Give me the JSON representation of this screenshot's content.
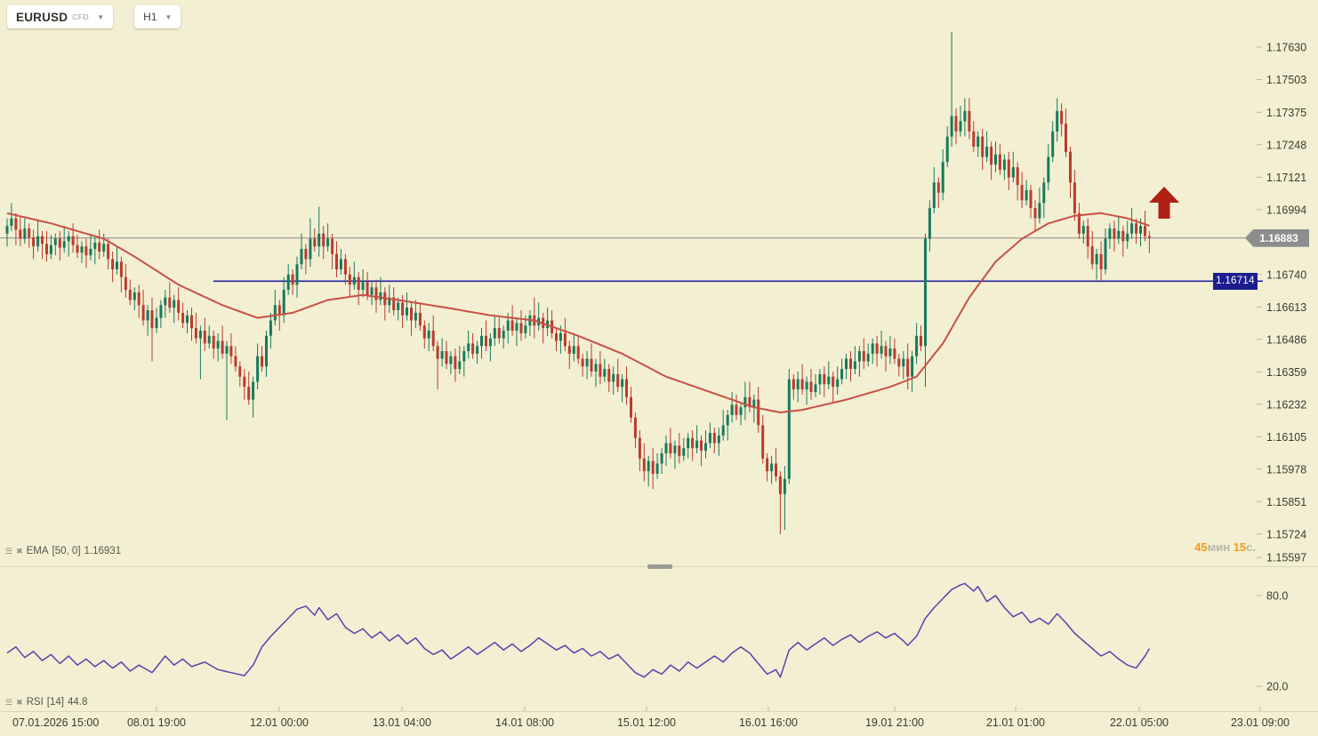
{
  "header": {
    "symbol": "EURUSD",
    "market_type": "CFD",
    "interval": "H1"
  },
  "indicators": {
    "ema": {
      "name": "EMA",
      "params": "[50, 0]",
      "value": "1.16931"
    },
    "rsi": {
      "name": "RSI",
      "params": "[14]",
      "value": "44.8"
    }
  },
  "countdown": {
    "minutes": "45",
    "minutes_unit": "мин",
    "seconds": "15",
    "seconds_unit": "с."
  },
  "chart_data": {
    "type": "candlestick",
    "title": "EURUSD CFD H1 with EMA(50) and RSI(14)",
    "price_axis": {
      "ticks": [
        "1.17630",
        "1.17503",
        "1.17375",
        "1.17248",
        "1.17121",
        "1.16994",
        "1.16740",
        "1.16613",
        "1.16486",
        "1.16359",
        "1.16232",
        "1.16105",
        "1.15978",
        "1.15851",
        "1.15724",
        "1.15597"
      ],
      "badge_current": "1.16883",
      "badge_support": "1.16714"
    },
    "time_axis": {
      "labels": [
        "07.01.2026 15:00",
        "08.01 19:00",
        "12.01 00:00",
        "13.01 04:00",
        "14.01 08:00",
        "15.01 12:00",
        "16.01 16:00",
        "19.01 21:00",
        "21.01 01:00",
        "22.01 05:00",
        "23.01 09:00"
      ]
    },
    "candles": {
      "first_open": 1.169,
      "closes": [
        1.1693,
        1.1696,
        1.16915,
        1.1688,
        1.1692,
        1.16885,
        1.1685,
        1.1689,
        1.1686,
        1.1682,
        1.16855,
        1.1688,
        1.16845,
        1.1687,
        1.1689,
        1.16855,
        1.16825,
        1.1685,
        1.16815,
        1.1684,
        1.16865,
        1.1683,
        1.1686,
        1.168,
        1.1676,
        1.1679,
        1.1673,
        1.1668,
        1.1664,
        1.1667,
        1.1662,
        1.1656,
        1.166,
        1.1653,
        1.1657,
        1.1662,
        1.1665,
        1.1661,
        1.1664,
        1.1659,
        1.1655,
        1.1658,
        1.1653,
        1.1649,
        1.1652,
        1.1647,
        1.165,
        1.1645,
        1.1648,
        1.1643,
        1.1646,
        1.1642,
        1.1638,
        1.1634,
        1.163,
        1.1625,
        1.1632,
        1.1642,
        1.1638,
        1.165,
        1.1656,
        1.1662,
        1.1658,
        1.1668,
        1.1674,
        1.167,
        1.1678,
        1.1684,
        1.168,
        1.1688,
        1.1685,
        1.169,
        1.1685,
        1.1688,
        1.1682,
        1.1676,
        1.168,
        1.1674,
        1.167,
        1.1673,
        1.1668,
        1.1671,
        1.1666,
        1.1669,
        1.1664,
        1.1667,
        1.1662,
        1.1665,
        1.166,
        1.1663,
        1.1658,
        1.1661,
        1.1656,
        1.1659,
        1.1654,
        1.1649,
        1.1652,
        1.1646,
        1.1641,
        1.1644,
        1.1639,
        1.1642,
        1.1637,
        1.164,
        1.1644,
        1.1647,
        1.1643,
        1.1646,
        1.165,
        1.1646,
        1.1649,
        1.1653,
        1.1649,
        1.1652,
        1.1656,
        1.1652,
        1.1655,
        1.1651,
        1.1654,
        1.1658,
        1.1654,
        1.1657,
        1.1653,
        1.1656,
        1.1651,
        1.1648,
        1.1651,
        1.1646,
        1.1643,
        1.1646,
        1.1641,
        1.1638,
        1.1641,
        1.1636,
        1.1639,
        1.1634,
        1.1637,
        1.1632,
        1.1635,
        1.163,
        1.1633,
        1.1626,
        1.1618,
        1.161,
        1.1602,
        1.1597,
        1.1601,
        1.1596,
        1.16,
        1.1604,
        1.1608,
        1.1604,
        1.1607,
        1.1603,
        1.1606,
        1.161,
        1.1606,
        1.1609,
        1.1605,
        1.1608,
        1.1612,
        1.1608,
        1.1611,
        1.1615,
        1.1619,
        1.1623,
        1.1619,
        1.1622,
        1.1626,
        1.1622,
        1.1625,
        1.1615,
        1.1602,
        1.1597,
        1.16,
        1.1595,
        1.1588,
        1.1594,
        1.1633,
        1.1629,
        1.1633,
        1.1629,
        1.1632,
        1.1628,
        1.1631,
        1.1635,
        1.1631,
        1.1634,
        1.163,
        1.1633,
        1.1637,
        1.1641,
        1.1637,
        1.164,
        1.1644,
        1.164,
        1.1643,
        1.1647,
        1.1643,
        1.1646,
        1.1642,
        1.1645,
        1.1641,
        1.1638,
        1.1641,
        1.1634,
        1.1642,
        1.165,
        1.1646,
        1.1688,
        1.17,
        1.171,
        1.1706,
        1.1718,
        1.1728,
        1.1736,
        1.173,
        1.1734,
        1.1738,
        1.173,
        1.1724,
        1.1728,
        1.172,
        1.1724,
        1.1717,
        1.1721,
        1.1715,
        1.1719,
        1.1712,
        1.1716,
        1.1709,
        1.1703,
        1.1707,
        1.17,
        1.1696,
        1.1702,
        1.171,
        1.172,
        1.173,
        1.1738,
        1.1733,
        1.1722,
        1.171,
        1.1698,
        1.169,
        1.1693,
        1.1685,
        1.1678,
        1.1682,
        1.1676,
        1.1688,
        1.1692,
        1.1688,
        1.1691,
        1.1687,
        1.169,
        1.1694,
        1.169,
        1.1693,
        1.1689,
        1.16883
      ],
      "wick_up_pattern": [
        0.0003,
        0.0006,
        0.0002,
        0.0005,
        0.0004,
        0.0002
      ],
      "wick_dn_pattern": [
        0.0005,
        0.0002,
        0.0006,
        0.0003,
        0.0002,
        0.0004
      ],
      "wick_events": [
        {
          "i": 33,
          "l": 1.164
        },
        {
          "i": 44,
          "l": 1.1633
        },
        {
          "i": 50,
          "l": 1.1617
        },
        {
          "i": 56,
          "l": 1.1618
        },
        {
          "i": 69,
          "h": 1.1696
        },
        {
          "i": 71,
          "h": 1.17005
        },
        {
          "i": 98,
          "l": 1.1629
        },
        {
          "i": 120,
          "h": 1.1665
        },
        {
          "i": 145,
          "l": 1.1593
        },
        {
          "i": 147,
          "l": 1.159
        },
        {
          "i": 168,
          "h": 1.1632
        },
        {
          "i": 176,
          "l": 1.15724
        },
        {
          "i": 177,
          "l": 1.1574
        },
        {
          "i": 205,
          "l": 1.1629
        },
        {
          "i": 209,
          "l": 1.163
        },
        {
          "i": 215,
          "h": 1.1769
        },
        {
          "i": 218,
          "h": 1.1743
        },
        {
          "i": 234,
          "l": 1.1693
        },
        {
          "i": 239,
          "h": 1.1743
        },
        {
          "i": 249,
          "l": 1.16714
        },
        {
          "i": 256,
          "h": 1.17
        }
      ]
    },
    "ema": {
      "last": 1.16931,
      "anchors": [
        [
          0,
          1.1698
        ],
        [
          10,
          1.1694
        ],
        [
          22,
          1.1688
        ],
        [
          29,
          1.1681
        ],
        [
          39,
          1.167
        ],
        [
          49,
          1.1662
        ],
        [
          57,
          1.1657
        ],
        [
          65,
          1.1659
        ],
        [
          73,
          1.1664
        ],
        [
          81,
          1.1666
        ],
        [
          89,
          1.1664
        ],
        [
          100,
          1.1661
        ],
        [
          110,
          1.1658
        ],
        [
          120,
          1.1656
        ],
        [
          130,
          1.165
        ],
        [
          140,
          1.1643
        ],
        [
          150,
          1.1634
        ],
        [
          160,
          1.1628
        ],
        [
          170,
          1.1622
        ],
        [
          176,
          1.162
        ],
        [
          181,
          1.1621
        ],
        [
          191,
          1.1625
        ],
        [
          201,
          1.163
        ],
        [
          207,
          1.1634
        ],
        [
          213,
          1.1647
        ],
        [
          219,
          1.1665
        ],
        [
          225,
          1.1679
        ],
        [
          231,
          1.1688
        ],
        [
          237,
          1.1694
        ],
        [
          243,
          1.1697
        ],
        [
          249,
          1.1698
        ],
        [
          255,
          1.1696
        ],
        [
          260,
          1.16931
        ]
      ]
    },
    "rsi": {
      "last": 44.8,
      "level_labels": [
        "80.0",
        "20.0"
      ],
      "levels": [
        80,
        20
      ],
      "anchors": [
        [
          0,
          42
        ],
        [
          2,
          46
        ],
        [
          4,
          39
        ],
        [
          6,
          43
        ],
        [
          8,
          37
        ],
        [
          10,
          41
        ],
        [
          12,
          35
        ],
        [
          14,
          40
        ],
        [
          16,
          34
        ],
        [
          18,
          38
        ],
        [
          20,
          33
        ],
        [
          22,
          37
        ],
        [
          24,
          32
        ],
        [
          26,
          36
        ],
        [
          28,
          30
        ],
        [
          30,
          34
        ],
        [
          33,
          29
        ],
        [
          36,
          40
        ],
        [
          38,
          34
        ],
        [
          40,
          38
        ],
        [
          42,
          33
        ],
        [
          45,
          36
        ],
        [
          48,
          31
        ],
        [
          51,
          29
        ],
        [
          54,
          27
        ],
        [
          56,
          34
        ],
        [
          58,
          46
        ],
        [
          60,
          53
        ],
        [
          62,
          59
        ],
        [
          64,
          65
        ],
        [
          66,
          71
        ],
        [
          68,
          73
        ],
        [
          70,
          67
        ],
        [
          71,
          72
        ],
        [
          73,
          64
        ],
        [
          75,
          68
        ],
        [
          77,
          59
        ],
        [
          79,
          55
        ],
        [
          81,
          58
        ],
        [
          83,
          52
        ],
        [
          85,
          56
        ],
        [
          87,
          50
        ],
        [
          89,
          54
        ],
        [
          91,
          48
        ],
        [
          93,
          52
        ],
        [
          95,
          45
        ],
        [
          97,
          41
        ],
        [
          99,
          44
        ],
        [
          101,
          38
        ],
        [
          103,
          42
        ],
        [
          105,
          46
        ],
        [
          107,
          41
        ],
        [
          109,
          45
        ],
        [
          111,
          49
        ],
        [
          113,
          44
        ],
        [
          115,
          48
        ],
        [
          117,
          43
        ],
        [
          119,
          47
        ],
        [
          121,
          52
        ],
        [
          123,
          48
        ],
        [
          125,
          44
        ],
        [
          127,
          47
        ],
        [
          129,
          42
        ],
        [
          131,
          45
        ],
        [
          133,
          40
        ],
        [
          135,
          43
        ],
        [
          137,
          38
        ],
        [
          139,
          41
        ],
        [
          141,
          35
        ],
        [
          143,
          29
        ],
        [
          145,
          26
        ],
        [
          147,
          31
        ],
        [
          149,
          28
        ],
        [
          151,
          34
        ],
        [
          153,
          30
        ],
        [
          155,
          36
        ],
        [
          157,
          32
        ],
        [
          159,
          36
        ],
        [
          161,
          40
        ],
        [
          163,
          36
        ],
        [
          165,
          42
        ],
        [
          167,
          46
        ],
        [
          169,
          42
        ],
        [
          171,
          35
        ],
        [
          173,
          28
        ],
        [
          175,
          31
        ],
        [
          176,
          26
        ],
        [
          178,
          44
        ],
        [
          180,
          49
        ],
        [
          182,
          44
        ],
        [
          184,
          48
        ],
        [
          186,
          52
        ],
        [
          188,
          47
        ],
        [
          190,
          51
        ],
        [
          192,
          54
        ],
        [
          194,
          49
        ],
        [
          196,
          53
        ],
        [
          198,
          56
        ],
        [
          200,
          52
        ],
        [
          202,
          55
        ],
        [
          204,
          50
        ],
        [
          205,
          47
        ],
        [
          207,
          53
        ],
        [
          209,
          65
        ],
        [
          211,
          72
        ],
        [
          213,
          78
        ],
        [
          215,
          84
        ],
        [
          217,
          87
        ],
        [
          218,
          88
        ],
        [
          220,
          83
        ],
        [
          221,
          86
        ],
        [
          223,
          76
        ],
        [
          225,
          80
        ],
        [
          227,
          72
        ],
        [
          229,
          66
        ],
        [
          231,
          69
        ],
        [
          233,
          62
        ],
        [
          235,
          65
        ],
        [
          237,
          61
        ],
        [
          239,
          68
        ],
        [
          241,
          62
        ],
        [
          243,
          55
        ],
        [
          245,
          50
        ],
        [
          247,
          45
        ],
        [
          249,
          40
        ],
        [
          251,
          43
        ],
        [
          253,
          38
        ],
        [
          255,
          34
        ],
        [
          257,
          32
        ],
        [
          259,
          40
        ],
        [
          260,
          44.8
        ]
      ]
    },
    "colors": {
      "background": "#f3efd2",
      "bull": "#177a5c",
      "bear": "#bb3b2f",
      "ema_line": "#c75146",
      "rsi_line": "#5c40ad",
      "current_price_line": "#8a8a8a",
      "current_price_badge": "#8d8d8d",
      "support_line": "#22229e",
      "support_badge": "#1d1d8f",
      "axis_text": "#3b3b33",
      "arrow": "#b02015",
      "countdown_number": "#ef9d22",
      "countdown_unit": "#b6b6aa"
    }
  }
}
